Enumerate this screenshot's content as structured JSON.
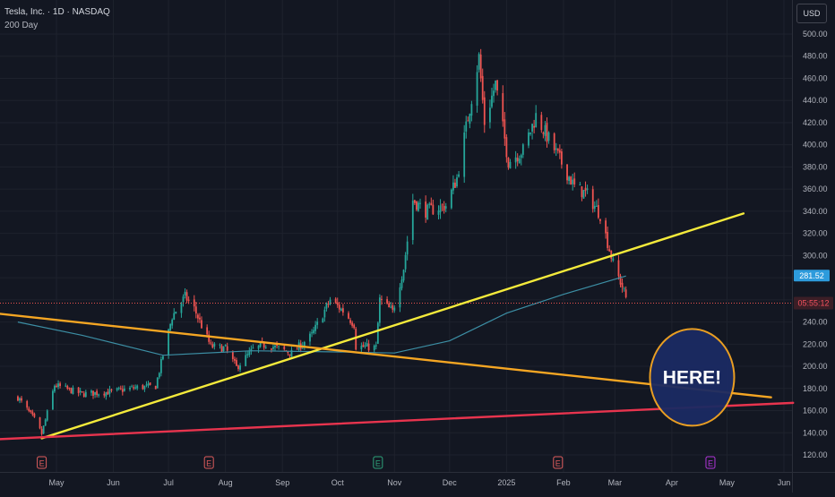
{
  "header": {
    "symbol_line": "Tesla, Inc. · 1D · NASDAQ",
    "indicator_label": "200 Day"
  },
  "price_axis": {
    "currency_label": "USD",
    "last_price_label": "281.52",
    "countdown_label": "05:55:12"
  },
  "annotation": {
    "text": "HERE!"
  },
  "colors": {
    "background": "#131722",
    "up_candle": "#26a69a",
    "down_candle": "#ef5350",
    "ma_line": "#3c8ea4",
    "yellow_trendline": "#f4ea3b",
    "orange_trendline": "#f5a623",
    "red_trendline": "#e8344e",
    "circle_fill": "#1b2a63",
    "circle_stroke": "#f5a623",
    "earnings_red": "#e05d5d",
    "earnings_green": "#2ea37a",
    "earnings_purple": "#b236d9"
  },
  "chart_data": {
    "type": "candlestick",
    "ylim": [
      110,
      510
    ],
    "y_ticks": [
      "500.00",
      "480.00",
      "460.00",
      "440.00",
      "420.00",
      "400.00",
      "380.00",
      "360.00",
      "340.00",
      "320.00",
      "300.00",
      "280.00",
      "260.00",
      "240.00",
      "220.00",
      "200.00",
      "180.00",
      "160.00",
      "140.00",
      "120.00"
    ],
    "x_ticks": [
      {
        "label": "May",
        "date": "2024-05-01"
      },
      {
        "label": "Jun",
        "date": "2024-06-01"
      },
      {
        "label": "Jul",
        "date": "2024-07-01"
      },
      {
        "label": "Aug",
        "date": "2024-08-01"
      },
      {
        "label": "Sep",
        "date": "2024-09-01"
      },
      {
        "label": "Oct",
        "date": "2024-10-01"
      },
      {
        "label": "Nov",
        "date": "2024-11-01"
      },
      {
        "label": "Dec",
        "date": "2024-12-01"
      },
      {
        "label": "2025",
        "date": "2025-01-01"
      },
      {
        "label": "Feb",
        "date": "2025-02-01"
      },
      {
        "label": "Mar",
        "date": "2025-03-01"
      },
      {
        "label": "Apr",
        "date": "2025-04-01"
      },
      {
        "label": "May",
        "date": "2025-05-01"
      },
      {
        "label": "Jun",
        "date": "2025-06-01"
      }
    ],
    "anchors": [
      [
        "2024-04-10",
        172
      ],
      [
        "2024-04-19",
        152
      ],
      [
        "2024-04-23",
        139
      ],
      [
        "2024-04-30",
        183
      ],
      [
        "2024-05-15",
        175
      ],
      [
        "2024-05-31",
        177
      ],
      [
        "2024-06-14",
        181
      ],
      [
        "2024-06-24",
        182
      ],
      [
        "2024-07-03",
        245
      ],
      [
        "2024-07-10",
        263
      ],
      [
        "2024-07-15",
        252
      ],
      [
        "2024-07-24",
        218
      ],
      [
        "2024-08-01",
        216
      ],
      [
        "2024-08-07",
        199
      ],
      [
        "2024-08-16",
        215
      ],
      [
        "2024-08-23",
        220
      ],
      [
        "2024-09-06",
        212
      ],
      [
        "2024-09-17",
        228
      ],
      [
        "2024-09-27",
        260
      ],
      [
        "2024-10-04",
        250
      ],
      [
        "2024-10-10",
        238
      ],
      [
        "2024-10-11",
        218
      ],
      [
        "2024-10-22",
        217
      ],
      [
        "2024-10-24",
        260
      ],
      [
        "2024-10-31",
        249
      ],
      [
        "2024-11-06",
        289
      ],
      [
        "2024-11-11",
        350
      ],
      [
        "2024-11-18",
        340
      ],
      [
        "2024-11-29",
        345
      ],
      [
        "2024-12-05",
        370
      ],
      [
        "2024-12-17",
        479
      ],
      [
        "2024-12-20",
        420
      ],
      [
        "2024-12-26",
        455
      ],
      [
        "2025-01-02",
        385
      ],
      [
        "2025-01-10",
        395
      ],
      [
        "2025-01-17",
        426
      ],
      [
        "2025-01-24",
        405
      ],
      [
        "2025-02-07",
        362
      ],
      [
        "2025-02-14",
        355
      ],
      [
        "2025-02-21",
        337
      ],
      [
        "2025-02-28",
        293
      ],
      [
        "2025-03-05",
        272
      ],
      [
        "2025-03-07",
        262
      ]
    ],
    "ma_200": [
      [
        "2024-04-10",
        240
      ],
      [
        "2024-05-15",
        228
      ],
      [
        "2024-06-28",
        210
      ],
      [
        "2024-08-15",
        214
      ],
      [
        "2024-10-01",
        213
      ],
      [
        "2024-11-01",
        212
      ],
      [
        "2024-12-01",
        223
      ],
      [
        "2025-01-01",
        248
      ],
      [
        "2025-02-01",
        265
      ],
      [
        "2025-03-07",
        281.52
      ]
    ],
    "trendlines": [
      {
        "color": "yellow",
        "from": [
          "2024-04-23",
          135
        ],
        "to": [
          "2025-05-10",
          338
        ]
      },
      {
        "color": "orange",
        "from": [
          "2024-03-28",
          248
        ],
        "to": [
          "2025-05-25",
          172
        ]
      },
      {
        "color": "red",
        "from": [
          "2024-03-28",
          134
        ],
        "to": [
          "2025-06-06",
          167
        ]
      }
    ],
    "last_price": 281.52,
    "current_price_line": 257,
    "events": [
      {
        "date": "2024-04-23",
        "label": "E",
        "color": "red"
      },
      {
        "date": "2024-07-23",
        "label": "E",
        "color": "red"
      },
      {
        "date": "2024-10-23",
        "label": "E",
        "color": "green"
      },
      {
        "date": "2025-01-29",
        "label": "E",
        "color": "red"
      },
      {
        "date": "2025-04-22",
        "label": "E",
        "color": "purple"
      }
    ],
    "annotation_circle": {
      "date": "2025-04-12",
      "value": 190
    }
  }
}
